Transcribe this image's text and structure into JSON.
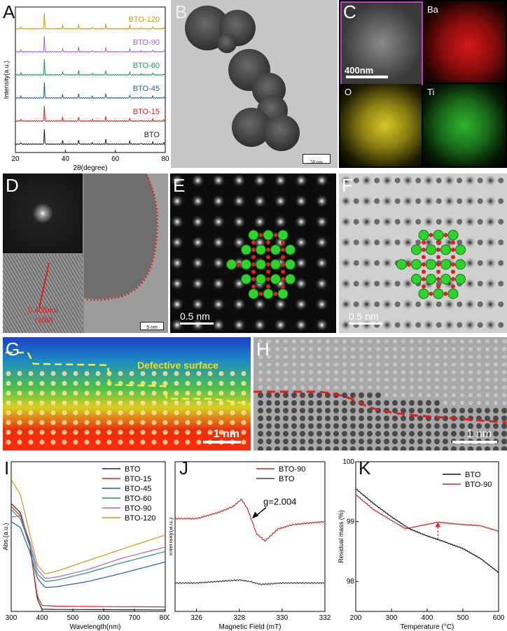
{
  "figure": {
    "panel_labels": {
      "A": "A",
      "B": "B",
      "C": "C",
      "D": "D",
      "E": "E",
      "F": "F",
      "G": "G",
      "H": "H",
      "I": "I",
      "J": "J",
      "K": "K"
    }
  },
  "panel_b": {
    "scalebar": "50 nm"
  },
  "panel_c": {
    "scalebar": "400nm",
    "maps": [
      "Ba",
      "O",
      "Ti"
    ],
    "colors": {
      "Ba": "#d41818",
      "O": "#d6c826",
      "Ti": "#2fb52f"
    }
  },
  "panel_d": {
    "annotation_line1": "0.405nm",
    "annotation_line2": "(100)",
    "scalebar": "5 nm"
  },
  "panel_e": {
    "scalebar": "0.5 nm"
  },
  "panel_f": {
    "scalebar": "0.5 nm"
  },
  "panel_g": {
    "label": "Defective surface",
    "scalebar": "1 nm"
  },
  "panel_h": {
    "scalebar": "1 nm"
  },
  "chart_data": [
    {
      "panel": "A",
      "type": "line",
      "xlabel": "2θ(degree)",
      "ylabel": "Intensity(a.u.)",
      "xlim": [
        20,
        80
      ],
      "xticks": [
        20,
        40,
        60,
        80
      ],
      "peaks_2theta": [
        22.2,
        31.6,
        38.9,
        45.3,
        50.8,
        56.2,
        65.8,
        70.3,
        75.0,
        79.4
      ],
      "peak_heights": [
        0.12,
        1.0,
        0.22,
        0.28,
        0.1,
        0.3,
        0.2,
        0.07,
        0.13,
        0.08
      ],
      "series": [
        {
          "name": "BTO",
          "color": "#222222"
        },
        {
          "name": "BTO-15",
          "color": "#d62728"
        },
        {
          "name": "BTO-45",
          "color": "#1f5fa8"
        },
        {
          "name": "BTO-60",
          "color": "#1f9a5a"
        },
        {
          "name": "BTO-90",
          "color": "#b05fd9"
        },
        {
          "name": "BTO-120",
          "color": "#c89a1a"
        }
      ]
    },
    {
      "panel": "I",
      "type": "line",
      "xlabel": "Wavelength(nm)",
      "ylabel": "Abs.(a.u.)",
      "xlim": [
        300,
        800
      ],
      "xticks": [
        300,
        400,
        500,
        600,
        700,
        800
      ],
      "series": [
        {
          "name": "BTO",
          "color": "#222222",
          "pts": [
            [
              300,
              0.72
            ],
            [
              330,
              0.66
            ],
            [
              360,
              0.45
            ],
            [
              385,
              0.08
            ],
            [
              400,
              0.015
            ],
            [
              450,
              0.013
            ],
            [
              600,
              0.012
            ],
            [
              800,
              0.01
            ]
          ]
        },
        {
          "name": "BTO-15",
          "color": "#d62728",
          "pts": [
            [
              300,
              0.7
            ],
            [
              330,
              0.64
            ],
            [
              360,
              0.44
            ],
            [
              385,
              0.1
            ],
            [
              400,
              0.04
            ],
            [
              450,
              0.035
            ],
            [
              600,
              0.032
            ],
            [
              800,
              0.03
            ]
          ]
        },
        {
          "name": "BTO-45",
          "color": "#1f5fa8",
          "pts": [
            [
              300,
              0.6
            ],
            [
              330,
              0.56
            ],
            [
              360,
              0.4
            ],
            [
              385,
              0.22
            ],
            [
              410,
              0.16
            ],
            [
              450,
              0.165
            ],
            [
              550,
              0.2
            ],
            [
              650,
              0.25
            ],
            [
              800,
              0.33
            ]
          ]
        },
        {
          "name": "BTO-60",
          "color": "#1f9a5a",
          "pts": [
            [
              300,
              0.68
            ],
            [
              330,
              0.62
            ],
            [
              360,
              0.44
            ],
            [
              385,
              0.25
            ],
            [
              410,
              0.2
            ],
            [
              450,
              0.21
            ],
            [
              550,
              0.26
            ],
            [
              650,
              0.32
            ],
            [
              800,
              0.4
            ]
          ]
        },
        {
          "name": "BTO-90",
          "color": "#b05fd9",
          "pts": [
            [
              300,
              0.63
            ],
            [
              330,
              0.64
            ],
            [
              360,
              0.47
            ],
            [
              385,
              0.28
            ],
            [
              410,
              0.22
            ],
            [
              450,
              0.23
            ],
            [
              550,
              0.28
            ],
            [
              650,
              0.35
            ],
            [
              800,
              0.43
            ]
          ]
        },
        {
          "name": "BTO-120",
          "color": "#c89a1a",
          "pts": [
            [
              300,
              0.88
            ],
            [
              330,
              0.78
            ],
            [
              360,
              0.52
            ],
            [
              385,
              0.31
            ],
            [
              410,
              0.25
            ],
            [
              450,
              0.27
            ],
            [
              550,
              0.34
            ],
            [
              650,
              0.41
            ],
            [
              800,
              0.51
            ]
          ]
        }
      ]
    },
    {
      "panel": "J",
      "type": "line",
      "xlabel": "Magnetic Field (mT)",
      "ylabel": "Intensity(a.u.)",
      "xlim": [
        325,
        332
      ],
      "xticks": [
        326,
        328,
        330,
        332
      ],
      "annotation": "g=2.004",
      "series": [
        {
          "name": "BTO-90",
          "color": "#d62728",
          "pts": [
            [
              325,
              0.62
            ],
            [
              326,
              0.62
            ],
            [
              327,
              0.66
            ],
            [
              327.7,
              0.7
            ],
            [
              328.1,
              0.75
            ],
            [
              328.4,
              0.68
            ],
            [
              328.8,
              0.52
            ],
            [
              329.2,
              0.47
            ],
            [
              329.8,
              0.55
            ],
            [
              330.5,
              0.58
            ],
            [
              332,
              0.6
            ]
          ]
        },
        {
          "name": "BTO",
          "color": "#444444",
          "pts": [
            [
              325,
              0.19
            ],
            [
              326,
              0.19
            ],
            [
              327,
              0.2
            ],
            [
              328,
              0.21
            ],
            [
              328.5,
              0.2
            ],
            [
              329,
              0.18
            ],
            [
              330,
              0.19
            ],
            [
              332,
              0.19
            ]
          ]
        }
      ]
    },
    {
      "panel": "K",
      "type": "line",
      "xlabel": "Temperature (°C)",
      "ylabel": "Residual mass (%)",
      "xlim": [
        200,
        600
      ],
      "ylim": [
        97.5,
        100
      ],
      "xticks": [
        200,
        300,
        400,
        500,
        600
      ],
      "yticks": [
        98,
        99,
        100
      ],
      "series": [
        {
          "name": "BTO",
          "color": "#111111",
          "pts": [
            [
              200,
              99.55
            ],
            [
              250,
              99.3
            ],
            [
              300,
              99.08
            ],
            [
              350,
              98.88
            ],
            [
              400,
              98.76
            ],
            [
              450,
              98.66
            ],
            [
              500,
              98.55
            ],
            [
              550,
              98.38
            ],
            [
              600,
              98.15
            ]
          ]
        },
        {
          "name": "BTO-90",
          "color": "#d62728",
          "pts": [
            [
              200,
              99.45
            ],
            [
              250,
              99.2
            ],
            [
              300,
              99.02
            ],
            [
              340,
              98.88
            ],
            [
              380,
              98.93
            ],
            [
              430,
              98.99
            ],
            [
              480,
              98.96
            ],
            [
              550,
              98.93
            ],
            [
              600,
              98.84
            ]
          ]
        }
      ],
      "marker_x": 430
    }
  ]
}
